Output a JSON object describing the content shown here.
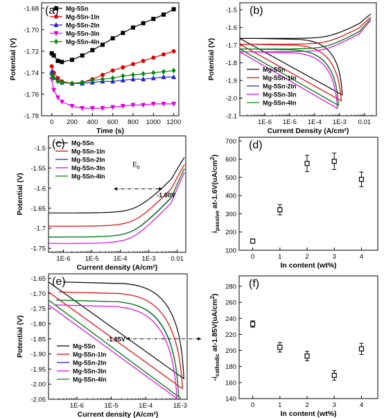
{
  "chart_data": [
    {
      "id": "a",
      "panel_label": "(a)",
      "type": "line",
      "xlabel": "Time (s)",
      "ylabel": "Potential (V)",
      "xlim": [
        -100,
        1250
      ],
      "ylim": [
        -1.78,
        -1.675
      ],
      "xticks": [
        0,
        200,
        400,
        600,
        800,
        1000,
        1200
      ],
      "yticks": [
        -1.78,
        -1.76,
        -1.74,
        -1.72,
        -1.7,
        -1.68
      ],
      "legend_position": "top-left",
      "series": [
        {
          "name": "Mg-5Sn",
          "color": "#000000",
          "marker": "square",
          "x": [
            0,
            20,
            60,
            100,
            200,
            300,
            400,
            500,
            600,
            700,
            800,
            900,
            1000,
            1100,
            1200
          ],
          "y": [
            -1.722,
            -1.724,
            -1.729,
            -1.73,
            -1.728,
            -1.724,
            -1.719,
            -1.714,
            -1.708,
            -1.703,
            -1.698,
            -1.694,
            -1.69,
            -1.686,
            -1.681
          ]
        },
        {
          "name": "Mg-5Sn-1In",
          "color": "#dd0000",
          "marker": "circle",
          "x": [
            0,
            20,
            60,
            100,
            200,
            300,
            400,
            500,
            600,
            700,
            800,
            900,
            1000,
            1100,
            1200
          ],
          "y": [
            -1.734,
            -1.74,
            -1.745,
            -1.748,
            -1.75,
            -1.749,
            -1.746,
            -1.742,
            -1.738,
            -1.735,
            -1.732,
            -1.729,
            -1.726,
            -1.723,
            -1.72
          ]
        },
        {
          "name": "Mg-5Sn-2In",
          "color": "#2222cc",
          "marker": "triangle",
          "x": [
            0,
            20,
            60,
            100,
            200,
            300,
            400,
            500,
            600,
            700,
            800,
            900,
            1000,
            1100,
            1200
          ],
          "y": [
            -1.739,
            -1.744,
            -1.747,
            -1.749,
            -1.75,
            -1.75,
            -1.749,
            -1.748,
            -1.748,
            -1.747,
            -1.746,
            -1.746,
            -1.745,
            -1.744,
            -1.744
          ]
        },
        {
          "name": "Mg-5Sn-3In",
          "color": "#dd00dd",
          "marker": "triangle-down",
          "x": [
            0,
            20,
            60,
            100,
            200,
            300,
            400,
            500,
            600,
            700,
            800,
            900,
            1000,
            1100,
            1200
          ],
          "y": [
            -1.746,
            -1.756,
            -1.763,
            -1.767,
            -1.771,
            -1.773,
            -1.773,
            -1.773,
            -1.772,
            -1.771,
            -1.77,
            -1.77,
            -1.769,
            -1.769,
            -1.769
          ]
        },
        {
          "name": "Mg-5Sn-4In",
          "color": "#008800",
          "marker": "diamond",
          "x": [
            0,
            20,
            60,
            100,
            200,
            300,
            400,
            500,
            600,
            700,
            800,
            900,
            1000,
            1100,
            1200
          ],
          "y": [
            -1.742,
            -1.745,
            -1.748,
            -1.749,
            -1.75,
            -1.749,
            -1.747,
            -1.746,
            -1.745,
            -1.743,
            -1.742,
            -1.741,
            -1.74,
            -1.739,
            -1.738
          ]
        }
      ]
    },
    {
      "id": "b",
      "panel_label": "(b)",
      "type": "line",
      "xscale": "log",
      "xlabel": "Current Density (A/cm²)",
      "ylabel": "Potential (V)",
      "xlim": [
        1e-07,
        0.03
      ],
      "ylim": [
        -2.1,
        -1.46
      ],
      "xticks": [
        1e-06,
        1e-05,
        0.0001,
        0.001,
        0.01
      ],
      "xticklabels": [
        "1E-6",
        "1E-5",
        "1E-4",
        "1E-3",
        "0.01"
      ],
      "yticks": [
        -2.1,
        -2.0,
        -1.9,
        -1.8,
        -1.7,
        -1.6,
        -1.5
      ],
      "legend_position": "bottom-left",
      "series": [
        {
          "name": "Mg-5Sn",
          "color": "#000000",
          "mark": "polarization",
          "ecorr": -1.662,
          "icorr": 0.0004,
          "alpha": 0.06,
          "beta": 0.2,
          "anodic_shift": 0.1,
          "anodic_max": 0.018,
          "cathodic_min": 0.0014
        },
        {
          "name": "Mg-5Sn-1In",
          "color": "#dd0000",
          "mark": "polarization",
          "ecorr": -1.695,
          "icorr": 0.0003,
          "alpha": 0.06,
          "beta": 0.2,
          "anodic_shift": 0.13,
          "anodic_max": 0.018,
          "cathodic_min": 0.0013
        },
        {
          "name": "Mg-5Sn-2In",
          "color": "#2222cc",
          "mark": "polarization",
          "ecorr": -1.722,
          "icorr": 0.00025,
          "alpha": 0.06,
          "beta": 0.2,
          "anodic_shift": 0.18,
          "anodic_max": 0.018,
          "cathodic_min": 0.001
        },
        {
          "name": "Mg-5Sn-3In",
          "color": "#dd00dd",
          "mark": "polarization",
          "ecorr": -1.738,
          "icorr": 0.00023,
          "alpha": 0.06,
          "beta": 0.2,
          "anodic_shift": 0.2,
          "anodic_max": 0.018,
          "cathodic_min": 0.0009
        },
        {
          "name": "Mg-5Sn-4In",
          "color": "#008800",
          "mark": "polarization",
          "ecorr": -1.722,
          "icorr": 0.00026,
          "alpha": 0.06,
          "beta": 0.2,
          "anodic_shift": 0.19,
          "anodic_max": 0.018,
          "cathodic_min": 0.001
        }
      ]
    },
    {
      "id": "c",
      "panel_label": "(c)",
      "type": "line",
      "xscale": "log",
      "xlabel": "Current density (A/cm²)",
      "ylabel": "Potential (V)",
      "xlim": [
        3e-07,
        0.02
      ],
      "ylim": [
        -1.76,
        -1.47
      ],
      "xticks": [
        1e-06,
        1e-05,
        0.0001,
        0.001,
        0.01
      ],
      "xticklabels": [
        "1E-6",
        "1E-5",
        "1E-4",
        "1E-3",
        "0.01"
      ],
      "yticks": [
        -1.75,
        -1.7,
        -1.65,
        -1.6,
        -1.55,
        -1.5
      ],
      "legend_position": "top-left",
      "annotations": [
        {
          "text": "E",
          "subscript": "b",
          "x": 0.0004,
          "y": -1.557
        },
        {
          "text": "-1.60V",
          "x": 0.0004,
          "y": -1.602
        }
      ],
      "series": [
        {
          "name": "Mg-5Sn",
          "color": "#000000",
          "mark": "anodic",
          "ecorr": -1.662,
          "icorr": 0.0004,
          "alpha": 0.06,
          "beta": 0.2,
          "anodic_shift": 0.1,
          "anodic_max": 0.018
        },
        {
          "name": "Mg-5Sn-1In",
          "color": "#dd0000",
          "mark": "anodic",
          "ecorr": -1.695,
          "icorr": 0.0003,
          "alpha": 0.06,
          "beta": 0.2,
          "anodic_shift": 0.13,
          "anodic_max": 0.018
        },
        {
          "name": "Mg-5Sn-2In",
          "color": "#2222cc",
          "mark": "anodic",
          "ecorr": -1.722,
          "icorr": 0.00025,
          "alpha": 0.06,
          "beta": 0.2,
          "anodic_shift": 0.18,
          "anodic_max": 0.018
        },
        {
          "name": "Mg-5Sn-3In",
          "color": "#dd00dd",
          "mark": "anodic",
          "ecorr": -1.738,
          "icorr": 0.00023,
          "alpha": 0.06,
          "beta": 0.2,
          "anodic_shift": 0.2,
          "anodic_max": 0.018
        },
        {
          "name": "Mg-5Sn-4In",
          "color": "#008800",
          "mark": "anodic",
          "ecorr": -1.722,
          "icorr": 0.00026,
          "alpha": 0.06,
          "beta": 0.2,
          "anodic_shift": 0.19,
          "anodic_max": 0.018
        }
      ]
    },
    {
      "id": "d",
      "panel_label": "(d)",
      "type": "scatter",
      "xlabel": "In content (wt%)",
      "ylabel": "i_passive at -1.6V(uA/cm²)",
      "ylabel_main": "i",
      "ylabel_sub": "passive",
      "ylabel_rest": " at-1.6V(uA/cm",
      "ylabel_sup": "2",
      "ylabel_end": ")",
      "xlim": [
        -0.5,
        4.6
      ],
      "ylim": [
        100,
        720
      ],
      "xticks": [
        0,
        1,
        2,
        3,
        4
      ],
      "yticks": [
        100,
        200,
        300,
        400,
        500,
        600,
        700
      ],
      "points": [
        {
          "x": 0,
          "y": 150,
          "err": 12
        },
        {
          "x": 1,
          "y": 322,
          "err": 28
        },
        {
          "x": 2,
          "y": 576,
          "err": 45
        },
        {
          "x": 3,
          "y": 588,
          "err": 45
        },
        {
          "x": 4,
          "y": 489,
          "err": 40
        }
      ]
    },
    {
      "id": "e",
      "panel_label": "(e)",
      "type": "line",
      "xscale": "log",
      "xlabel": "Current density (A/cm²)",
      "ylabel": "Potential (V)",
      "xlim": [
        1.5e-07,
        0.0016
      ],
      "ylim": [
        -2.05,
        -1.635
      ],
      "xticks": [
        1e-06,
        1e-05,
        0.0001,
        0.001
      ],
      "xticklabels": [
        "1E-6",
        "1E-5",
        "1E-4",
        "1E-3"
      ],
      "yticks": [
        -2.05,
        -2.0,
        -1.95,
        -1.9,
        -1.85,
        -1.8,
        -1.75,
        -1.7,
        -1.65
      ],
      "legend_position": "bottom-left",
      "annotations": [
        {
          "text": "-1.85V",
          "x": 0.0001,
          "y": -1.85
        }
      ],
      "series": [
        {
          "name": "Mg-5Sn",
          "color": "#000000",
          "mark": "cathodic",
          "ecorr": -1.662,
          "icorr": 0.0004,
          "beta": 0.2,
          "cathodic_min": 0.0014
        },
        {
          "name": "Mg-5Sn-1In",
          "color": "#dd0000",
          "mark": "cathodic",
          "ecorr": -1.695,
          "icorr": 0.0003,
          "beta": 0.2,
          "cathodic_min": 0.0013
        },
        {
          "name": "Mg-5Sn-2In",
          "color": "#2222cc",
          "mark": "cathodic",
          "ecorr": -1.722,
          "icorr": 0.00025,
          "beta": 0.2,
          "cathodic_min": 0.001
        },
        {
          "name": "Mg-5Sn-3In",
          "color": "#dd00dd",
          "mark": "cathodic",
          "ecorr": -1.738,
          "icorr": 0.00023,
          "beta": 0.2,
          "cathodic_min": 0.0009
        },
        {
          "name": "Mg-5Sn-4In",
          "color": "#008800",
          "mark": "cathodic",
          "ecorr": -1.722,
          "icorr": 0.00026,
          "beta": 0.2,
          "cathodic_min": 0.001
        }
      ]
    },
    {
      "id": "f",
      "panel_label": "(f)",
      "type": "scatter",
      "xlabel": "In content (wt%)",
      "ylabel": "-i_cathodic at-1.85V(uA/cm²)",
      "ylabel_main": "-i",
      "ylabel_sub": "cathodic",
      "ylabel_rest": " at-1.85V(uA/cm",
      "ylabel_sup": "2",
      "ylabel_end": ")",
      "xlim": [
        -0.5,
        4.6
      ],
      "ylim": [
        140,
        293
      ],
      "xticks": [
        0,
        1,
        2,
        3,
        4
      ],
      "yticks": [
        140,
        160,
        180,
        200,
        220,
        240,
        260,
        280
      ],
      "points": [
        {
          "x": 0,
          "y": 233,
          "err": 4
        },
        {
          "x": 1,
          "y": 204,
          "err": 6
        },
        {
          "x": 2,
          "y": 193,
          "err": 6
        },
        {
          "x": 3,
          "y": 169,
          "err": 6
        },
        {
          "x": 4,
          "y": 202,
          "err": 7
        }
      ]
    }
  ]
}
